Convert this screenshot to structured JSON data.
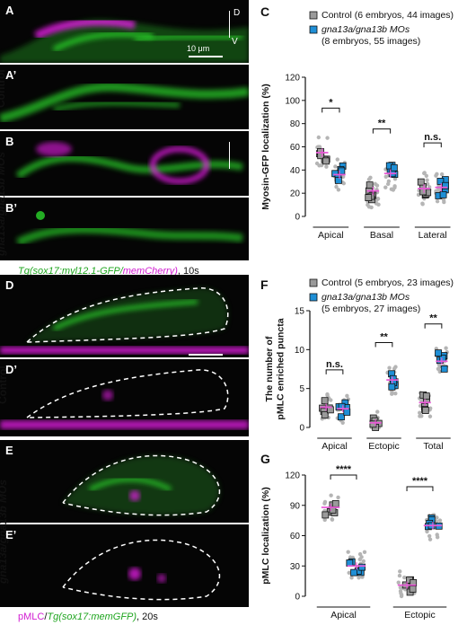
{
  "figure": {
    "panels": {
      "A": {
        "label": "A"
      },
      "A1": {
        "label": "A’"
      },
      "B": {
        "label": "B"
      },
      "B1": {
        "label": "B’"
      },
      "D": {
        "label": "D"
      },
      "D1": {
        "label": "D’"
      },
      "E": {
        "label": "E"
      },
      "E1": {
        "label": "E’"
      }
    },
    "axis_marks": {
      "dorsal": "D",
      "ventral": "V"
    },
    "scale_bar": "10 μm",
    "row_labels": {
      "control": "Control",
      "mo": "gna13a/gna13b MOs"
    },
    "captions": {
      "top_part1": "Tg(sox17:myl12.1-GFP/",
      "top_part2": "memCherry)",
      "top_part3": ", 10s",
      "bottom_part1": "pMLC",
      "bottom_part2": "/",
      "bottom_part3": "Tg(sox17:memGFP)",
      "bottom_part4": ", 20s"
    },
    "colors": {
      "green": "#2bd62b",
      "magenta": "#e81ee8",
      "pink": "#e85ad6",
      "blue": "#1f8fd6",
      "grey": "#9a9a9a"
    }
  },
  "chart_data": [
    {
      "panel": "C",
      "type": "scatter",
      "ylabel": "Myosin-GFP localization (%)",
      "ylim": [
        0,
        120
      ],
      "yticks": [
        0,
        20,
        40,
        60,
        80,
        100,
        120
      ],
      "categories": [
        "Apical",
        "Basal",
        "Lateral"
      ],
      "legend": [
        {
          "name": "Control (6 embryos, 44 images)"
        },
        {
          "name_italic": "gna13a/gna13b MOs",
          "name_rest": "(8 embryos, 55 images)"
        }
      ],
      "series": [
        {
          "name": "Control",
          "means": [
            55,
            22,
            24
          ]
        },
        {
          "name": "gna13a/gna13b MOs",
          "means": [
            36,
            37,
            25
          ]
        }
      ],
      "significance": [
        "*",
        "**",
        "n.s."
      ]
    },
    {
      "panel": "F",
      "type": "scatter",
      "ylabel": "The number of pMLC enriched puncta",
      "ylim": [
        0,
        15
      ],
      "yticks": [
        0,
        5,
        10,
        15
      ],
      "categories": [
        "Apical",
        "Ectopic",
        "Total"
      ],
      "legend": [
        {
          "name": "Control (5 embryos, 23 images)"
        },
        {
          "name_italic": "gna13a/gna13b MOs",
          "name_rest": "(5 embryos, 27 images)"
        }
      ],
      "series": [
        {
          "name": "Control",
          "means": [
            2.6,
            0.6,
            3.2
          ]
        },
        {
          "name": "gna13a/gna13b MOs",
          "means": [
            2.4,
            6.1,
            8.5
          ]
        }
      ],
      "significance": [
        "n.s.",
        "**",
        "**"
      ]
    },
    {
      "panel": "G",
      "type": "scatter",
      "ylabel": "pMLC localization (%)",
      "ylim": [
        0,
        120
      ],
      "yticks": [
        0,
        30,
        60,
        90,
        120
      ],
      "categories": [
        "Apical",
        "Ectopic"
      ],
      "series": [
        {
          "name": "Control",
          "means": [
            88,
            11
          ]
        },
        {
          "name": "gna13a/gna13b MOs",
          "means": [
            30,
            70
          ]
        }
      ],
      "significance": [
        "****",
        "****"
      ]
    }
  ]
}
